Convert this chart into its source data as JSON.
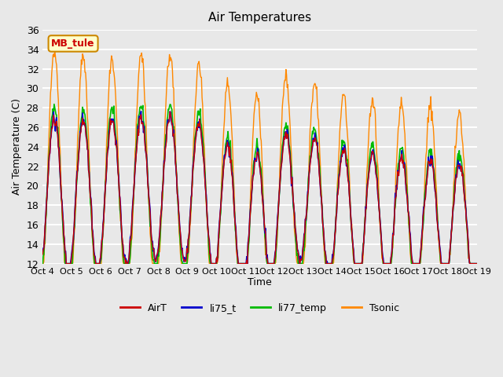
{
  "title": "Air Temperatures",
  "ylabel": "Air Temperature (C)",
  "xlabel": "Time",
  "ylim": [
    12,
    36
  ],
  "yticks": [
    12,
    14,
    16,
    18,
    20,
    22,
    24,
    26,
    28,
    30,
    32,
    34,
    36
  ],
  "background_color": "#e8e8e8",
  "plot_bg_color": "#e8e8e8",
  "grid_color": "white",
  "series_colors": {
    "AirT": "#cc0000",
    "li75_t": "#0000cc",
    "li77_temp": "#00bb00",
    "Tsonic": "#ff8800"
  },
  "annotation_text": "MB_tule",
  "annotation_color": "#cc0000",
  "annotation_bg": "#ffffcc",
  "annotation_border": "#cc8800",
  "xtick_labels": [
    "Oct 4",
    "Oct 5",
    "Oct 6",
    "Oct 7",
    "Oct 8",
    "Oct 9",
    "Oct 10",
    "Oct 11",
    "Oct 12",
    "Oct 13",
    "Oct 14",
    "Oct 15",
    "Oct 16",
    "Oct 17",
    "Oct 18",
    "Oct 19"
  ],
  "n_days": 15,
  "pts_per_day": 48
}
